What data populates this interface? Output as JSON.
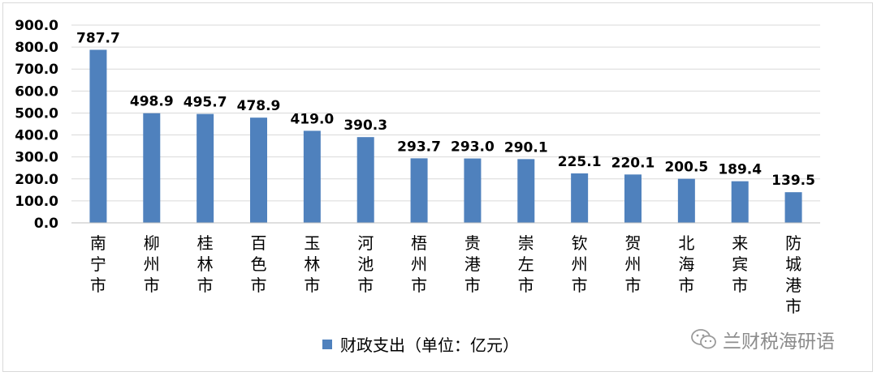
{
  "chart_data": {
    "type": "bar",
    "categories": [
      "南宁市",
      "柳州市",
      "桂林市",
      "百色市",
      "玉林市",
      "河池市",
      "梧州市",
      "贵港市",
      "崇左市",
      "钦州市",
      "贺州市",
      "北海市",
      "来宾市",
      "防城港市"
    ],
    "series": [
      {
        "name": "财政支出（单位：亿元）",
        "values": [
          787.7,
          498.9,
          495.7,
          478.9,
          419.0,
          390.3,
          293.7,
          293.0,
          290.1,
          225.1,
          220.1,
          200.5,
          189.4,
          139.5
        ]
      }
    ],
    "data_labels": [
      "787.7",
      "498.9",
      "495.7",
      "478.9",
      "419.0",
      "390.3",
      "293.7",
      "293.0",
      "290.1",
      "225.1",
      "220.1",
      "200.5",
      "189.4",
      "139.5"
    ],
    "yticks": [
      "0.0",
      "100.0",
      "200.0",
      "300.0",
      "400.0",
      "500.0",
      "600.0",
      "700.0",
      "800.0",
      "900.0"
    ],
    "ylim": [
      0,
      900
    ],
    "grid": true,
    "legend_position": "bottom",
    "bar_color": "#4f81bd",
    "grid_color": "#d9d9d9"
  },
  "watermark": "兰财税海研语"
}
